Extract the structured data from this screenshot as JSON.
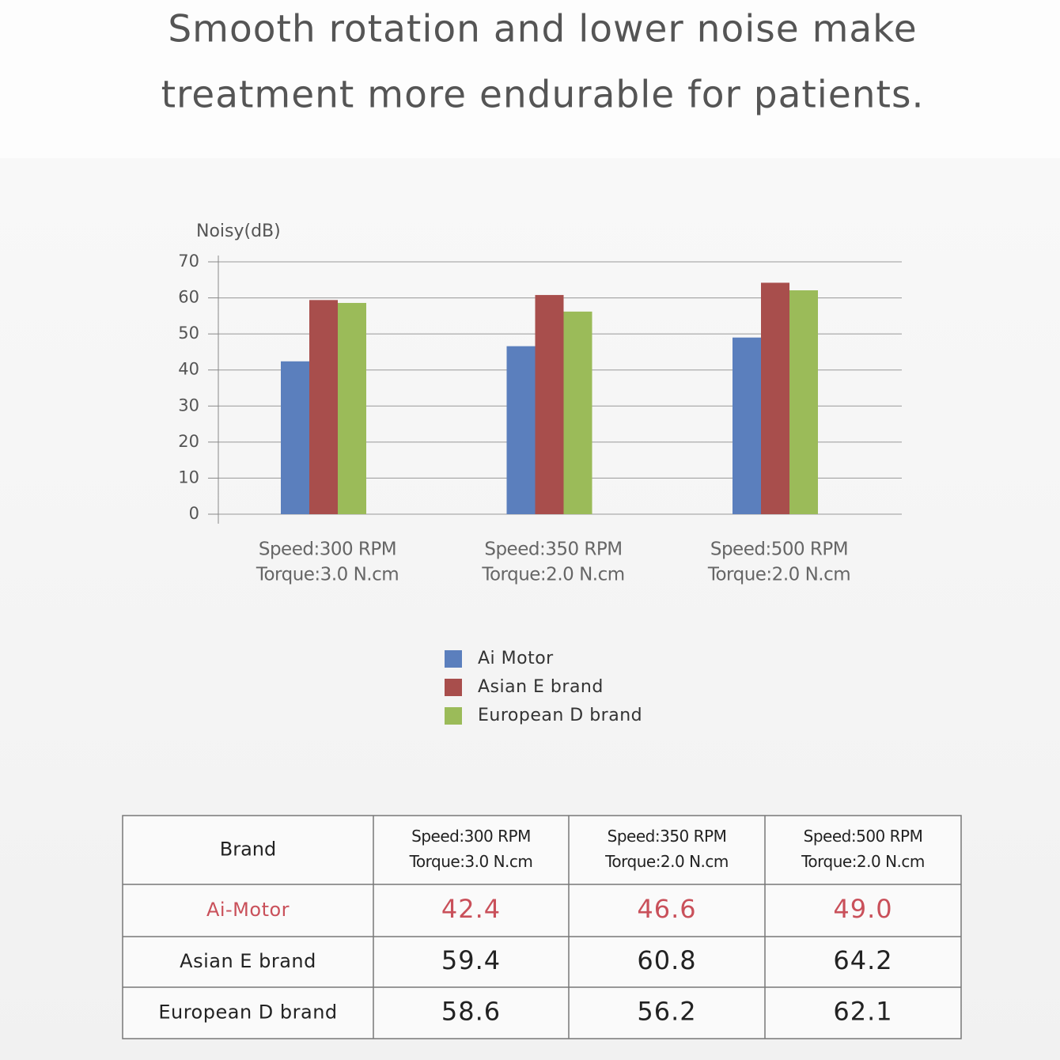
{
  "header": {
    "title": [
      "Smooth rotation and lower noise make",
      "treatment more endurable for patients."
    ]
  },
  "chart_data": {
    "type": "bar",
    "y_label": "Noisy(dB)",
    "categories": [
      [
        "Speed:300 RPM",
        "Torque:3.0 N.cm"
      ],
      [
        "Speed:350 RPM",
        "Torque:2.0 N.cm"
      ],
      [
        "Speed:500 RPM",
        "Torque:2.0 N.cm"
      ]
    ],
    "series": [
      {
        "name": "Ai Motor",
        "color": "#5b7fbd",
        "values": [
          42.4,
          46.6,
          49.0
        ]
      },
      {
        "name": "Asian E brand",
        "color": "#a84e4c",
        "values": [
          59.4,
          60.8,
          64.2
        ]
      },
      {
        "name": "European D brand",
        "color": "#9bbb59",
        "values": [
          58.6,
          56.2,
          62.1
        ]
      }
    ],
    "ylim": [
      0,
      70
    ],
    "yticks": [
      0,
      10,
      20,
      30,
      40,
      50,
      60,
      70
    ],
    "grid": true,
    "legend": "bottom"
  },
  "table": {
    "header": [
      "Brand",
      [
        "Speed:300 RPM",
        "Torque:3.0 N.cm"
      ],
      [
        "Speed:350 RPM",
        "Torque:2.0 N.cm"
      ],
      [
        "Speed:500 RPM",
        "Torque:2.0 N.cm"
      ]
    ],
    "rows": [
      [
        "Ai-Motor",
        "42.4",
        "46.6",
        "49.0"
      ],
      [
        "Asian E brand",
        "59.4",
        "60.8",
        "64.2"
      ],
      [
        "European D brand",
        "58.6",
        "56.2",
        "62.1"
      ]
    ],
    "highlight_color": "#c9505a"
  }
}
